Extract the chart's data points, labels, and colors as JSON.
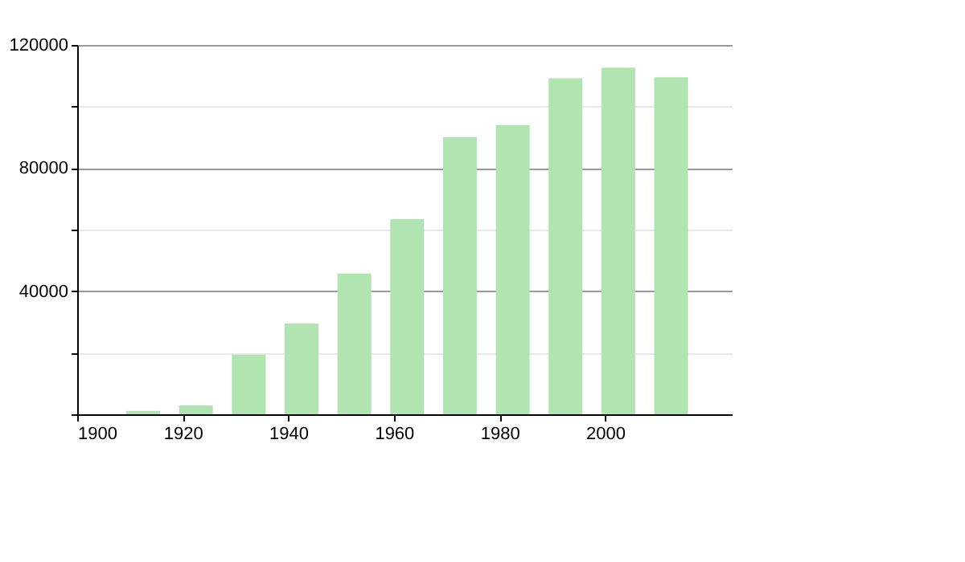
{
  "chart_data": {
    "type": "bar",
    "x": [
      1912.5,
      1922.5,
      1932.5,
      1942.5,
      1952.5,
      1962.5,
      1972.5,
      1982.5,
      1992.5,
      2002.5,
      2012.5
    ],
    "values": [
      1100,
      2900,
      19400,
      29500,
      45700,
      63400,
      90000,
      94000,
      109200,
      112600,
      109500
    ],
    "color": "#b0e4b0",
    "xlim": [
      1900,
      2024
    ],
    "xticks": [
      1900,
      1920,
      1940,
      1960,
      1980,
      2000
    ],
    "ylim": [
      0,
      120000
    ],
    "yticks": [
      {
        "value": 0,
        "label": null
      },
      {
        "value": 20000,
        "label": null
      },
      40000,
      {
        "value": 60000,
        "label": null
      },
      80000,
      {
        "value": 100000,
        "label": null
      },
      120000
    ],
    "grid": "y"
  }
}
